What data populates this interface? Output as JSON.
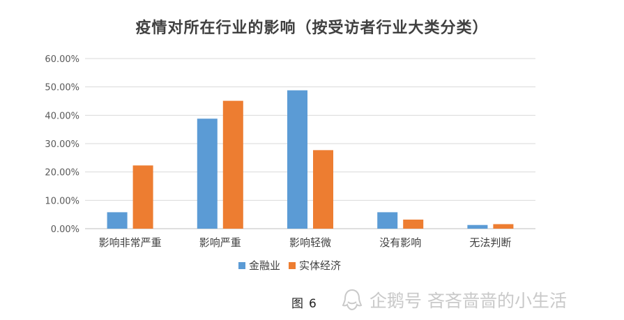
{
  "chart_data": {
    "type": "bar",
    "title": "疫情对所在行业的影响（按受访者行业大类分类）",
    "categories": [
      "影响非常严重",
      "影响严重",
      "影响轻微",
      "没有影响",
      "无法判断"
    ],
    "series": [
      {
        "name": "金融业",
        "values": [
          5.8,
          38.8,
          48.8,
          5.8,
          1.3
        ],
        "color": "#5B9BD5"
      },
      {
        "name": "实体经济",
        "values": [
          22.3,
          45.1,
          27.7,
          3.2,
          1.6
        ],
        "color": "#ED7D31"
      }
    ],
    "y_ticks": [
      "0.00%",
      "10.00%",
      "20.00%",
      "30.00%",
      "40.00%",
      "50.00%",
      "60.00%"
    ],
    "ylim": [
      0,
      60
    ],
    "grid": true,
    "legend_position": "bottom"
  },
  "caption": {
    "label": "图",
    "number": "6"
  },
  "watermark": {
    "text": "企鹅号 吝吝啬啬的小生活",
    "icon": "penguin-icon"
  }
}
